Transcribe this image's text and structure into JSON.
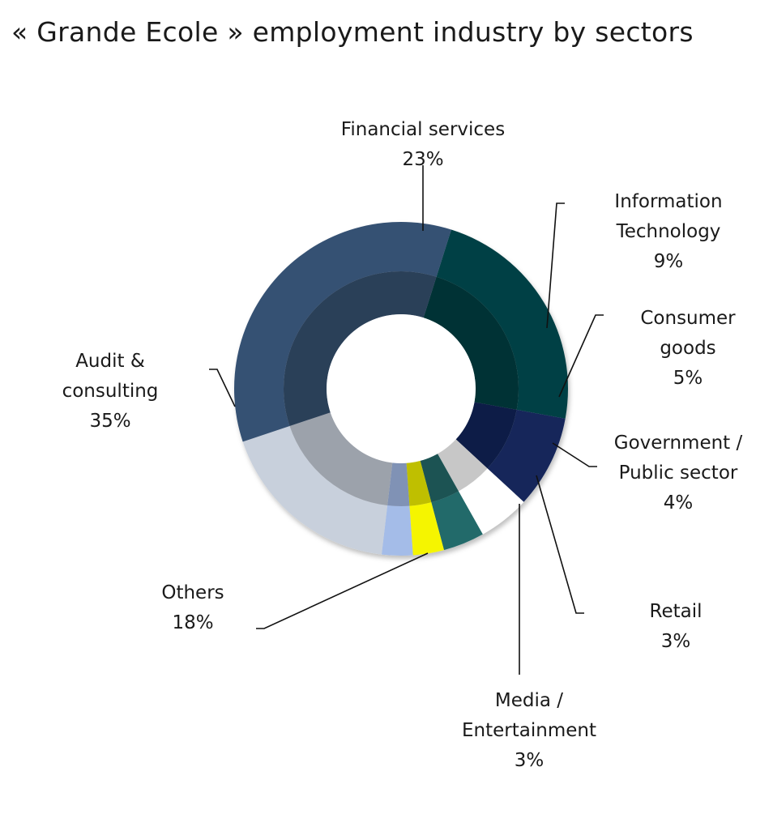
{
  "chart_data": {
    "type": "pie",
    "title": "« Grande Ecole » employment industry by sectors",
    "series": [
      {
        "name": "Financial services",
        "value": 23,
        "value_label": "23%",
        "color": "#024044",
        "label_lines": [
          "Financial services",
          "23%"
        ]
      },
      {
        "name": "Information Technology",
        "value": 9,
        "value_label": "9%",
        "color": "#14285a",
        "label_lines": [
          "Information",
          "Technology",
          "9%"
        ]
      },
      {
        "name": "Consumer goods",
        "value": 5,
        "value_label": "5%",
        "color": "#ffffff",
        "label_lines": [
          "Consumer",
          "goods",
          "5%"
        ]
      },
      {
        "name": "Government / Public sector",
        "value": 4,
        "value_label": "4%",
        "color": "#236b6b",
        "label_lines": [
          "Government /",
          "Public sector",
          "4%"
        ]
      },
      {
        "name": "Retail",
        "value": 3,
        "value_label": "3%",
        "color": "#f5f500",
        "label_lines": [
          "Retail",
          "3%"
        ]
      },
      {
        "name": "Media / Entertainment",
        "value": 3,
        "value_label": "3%",
        "color": "#a4bce8",
        "label_lines": [
          "Media /",
          "Entertainment",
          "3%"
        ]
      },
      {
        "name": "Others",
        "value": 18,
        "value_label": "18%",
        "color": "#c8d0dc",
        "label_lines": [
          "Others",
          "18%"
        ]
      },
      {
        "name": "Audit & consulting",
        "value": 35,
        "value_label": "35%",
        "color": "#365173",
        "label_lines": [
          "Audit &",
          "consulting",
          "35%"
        ]
      }
    ],
    "legend": "none",
    "style": "donut with leader-line labels"
  }
}
